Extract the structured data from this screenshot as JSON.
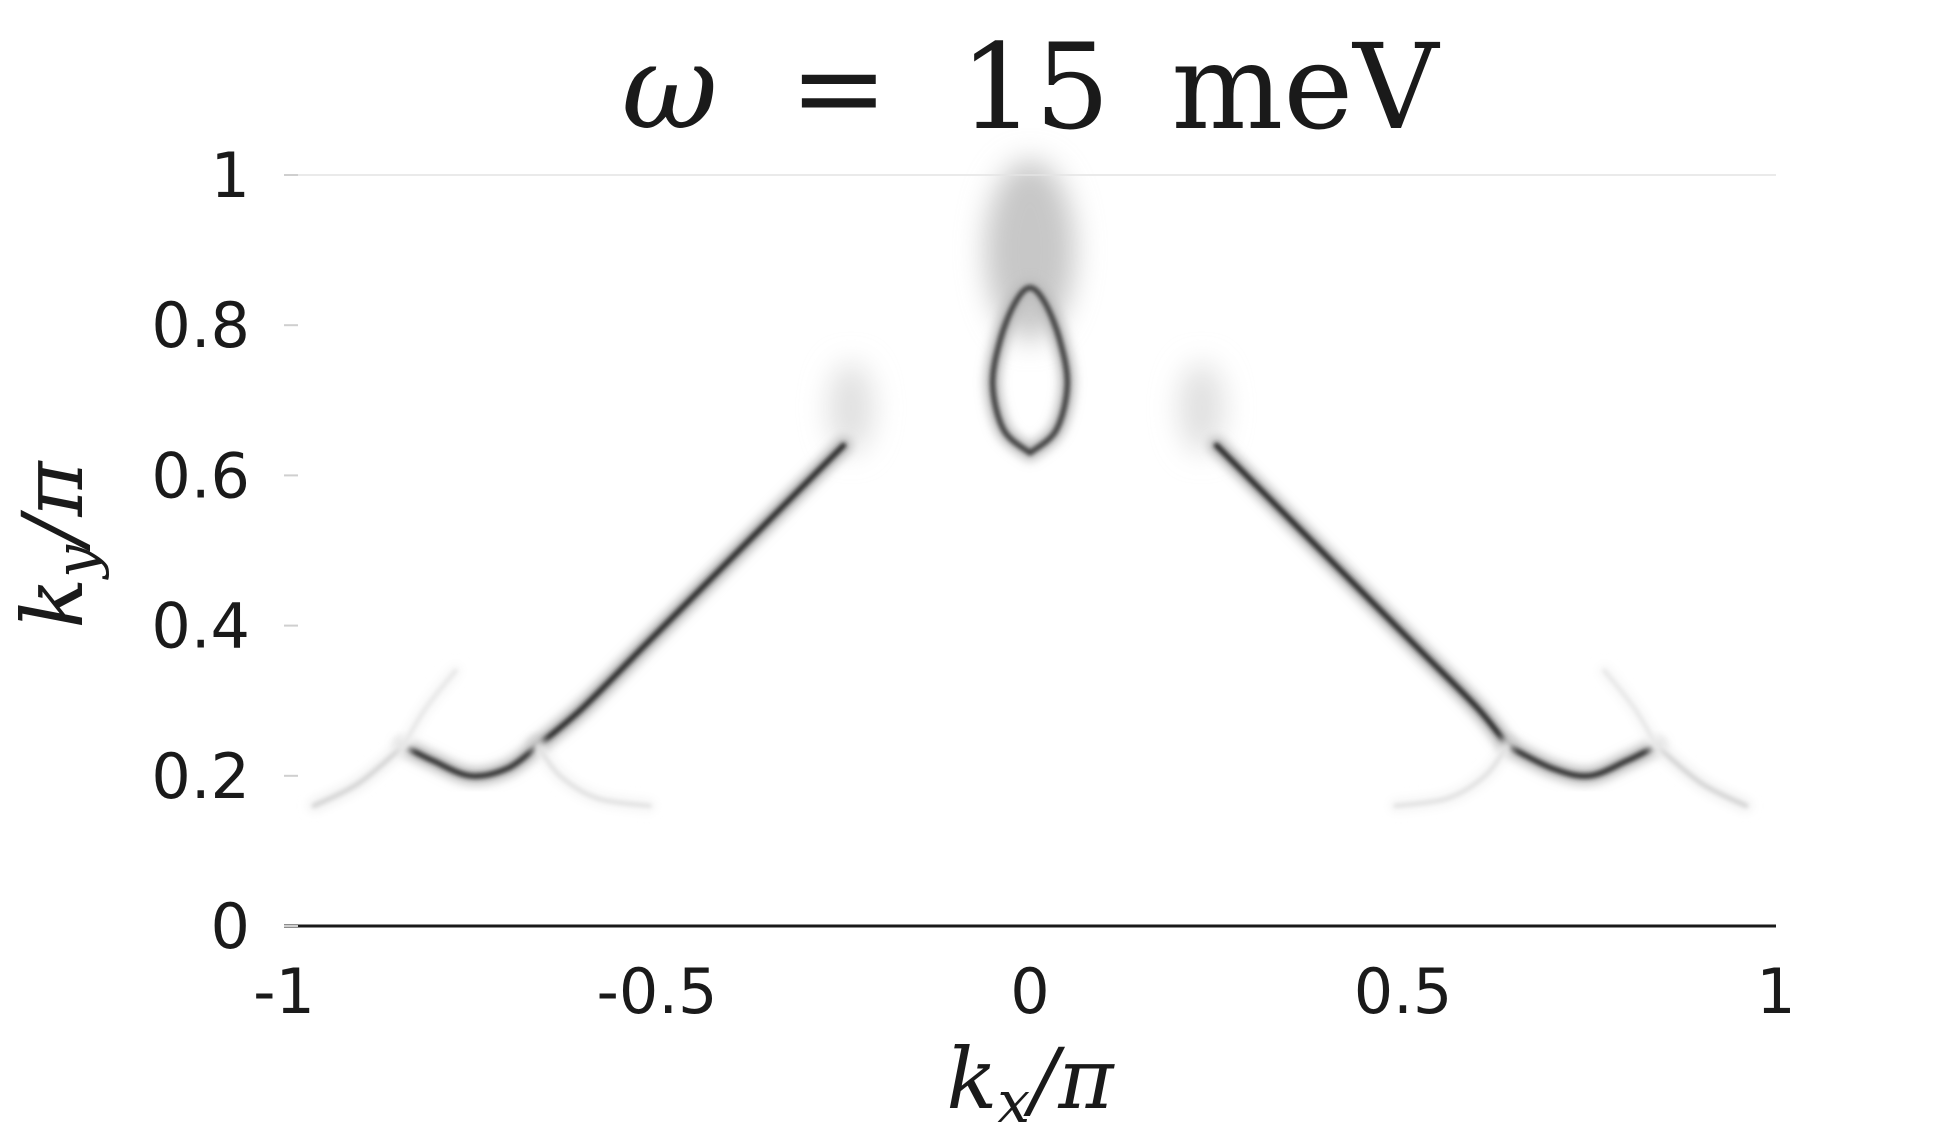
{
  "chart_data": {
    "type": "heatmap",
    "title": "ω = 15 meV",
    "title_parts": {
      "symbol": "ω",
      "eq": "=",
      "value": "15",
      "unit": "meV"
    },
    "xlabel": "k_x/π",
    "ylabel": "k_y/π",
    "xlabel_parts": {
      "base": "k",
      "sub": "x",
      "rest": "/π"
    },
    "ylabel_parts": {
      "base": "k",
      "sub": "y",
      "rest": "/π"
    },
    "xlim": [
      -1,
      1
    ],
    "ylim": [
      0,
      1
    ],
    "xticks": [
      {
        "value": -1,
        "label": "-1"
      },
      {
        "value": -0.5,
        "label": "-0.5"
      },
      {
        "value": 0,
        "label": "0"
      },
      {
        "value": 0.5,
        "label": "0.5"
      },
      {
        "value": 1,
        "label": "1"
      }
    ],
    "yticks": [
      {
        "value": 0,
        "label": "0"
      },
      {
        "value": 0.2,
        "label": "0.2"
      },
      {
        "value": 0.4,
        "label": "0.4"
      },
      {
        "value": 0.6,
        "label": "0.6"
      },
      {
        "value": 0.8,
        "label": "0.8"
      },
      {
        "value": 1,
        "label": "1"
      }
    ],
    "colormap": "grayscale (white = low, black = high intensity)",
    "grid": false,
    "features": [
      {
        "name": "left Fermi arc",
        "intensity": 0.85,
        "points": [
          [
            -0.25,
            0.64
          ],
          [
            -0.3,
            0.59
          ],
          [
            -0.36,
            0.53
          ],
          [
            -0.44,
            0.45
          ],
          [
            -0.52,
            0.37
          ],
          [
            -0.6,
            0.29
          ],
          [
            -0.66,
            0.24
          ]
        ]
      },
      {
        "name": "left pocket bottom",
        "intensity": 0.8,
        "points": [
          [
            -0.66,
            0.24
          ],
          [
            -0.7,
            0.21
          ],
          [
            -0.75,
            0.2
          ],
          [
            -0.8,
            0.22
          ],
          [
            -0.84,
            0.24
          ]
        ]
      },
      {
        "name": "left faint branch",
        "intensity": 0.18,
        "points": [
          [
            -0.84,
            0.24
          ],
          [
            -0.9,
            0.19
          ],
          [
            -0.96,
            0.16
          ]
        ]
      },
      {
        "name": "left faint upper branch",
        "intensity": 0.1,
        "points": [
          [
            -0.84,
            0.24
          ],
          [
            -0.81,
            0.29
          ],
          [
            -0.77,
            0.34
          ]
        ]
      },
      {
        "name": "left faint lower branch",
        "intensity": 0.12,
        "points": [
          [
            -0.66,
            0.24
          ],
          [
            -0.63,
            0.2
          ],
          [
            -0.58,
            0.17
          ],
          [
            -0.51,
            0.16
          ]
        ]
      },
      {
        "name": "right Fermi arc",
        "intensity": 0.85,
        "points": [
          [
            0.25,
            0.64
          ],
          [
            0.3,
            0.59
          ],
          [
            0.36,
            0.53
          ],
          [
            0.44,
            0.45
          ],
          [
            0.52,
            0.37
          ],
          [
            0.6,
            0.29
          ],
          [
            0.64,
            0.24
          ]
        ]
      },
      {
        "name": "right pocket bottom",
        "intensity": 0.8,
        "points": [
          [
            0.64,
            0.24
          ],
          [
            0.7,
            0.21
          ],
          [
            0.75,
            0.2
          ],
          [
            0.8,
            0.22
          ],
          [
            0.84,
            0.24
          ]
        ]
      },
      {
        "name": "right faint branch",
        "intensity": 0.18,
        "points": [
          [
            0.84,
            0.24
          ],
          [
            0.9,
            0.19
          ],
          [
            0.96,
            0.16
          ]
        ]
      },
      {
        "name": "right faint upper branch",
        "intensity": 0.1,
        "points": [
          [
            0.84,
            0.24
          ],
          [
            0.81,
            0.29
          ],
          [
            0.77,
            0.34
          ]
        ]
      },
      {
        "name": "right faint lower branch",
        "intensity": 0.12,
        "points": [
          [
            0.64,
            0.24
          ],
          [
            0.61,
            0.2
          ],
          [
            0.56,
            0.17
          ],
          [
            0.49,
            0.16
          ]
        ]
      },
      {
        "name": "central pocket",
        "intensity": 0.75,
        "points": [
          [
            0,
            0.63
          ],
          [
            -0.035,
            0.66
          ],
          [
            -0.05,
            0.72
          ],
          [
            -0.04,
            0.78
          ],
          [
            -0.02,
            0.83
          ],
          [
            0,
            0.85
          ],
          [
            0.02,
            0.83
          ],
          [
            0.04,
            0.78
          ],
          [
            0.05,
            0.72
          ],
          [
            0.035,
            0.66
          ],
          [
            0,
            0.63
          ]
        ]
      }
    ],
    "diffuse_spots": [
      {
        "name": "central top diffuse",
        "x": 0,
        "y": 0.9,
        "rx": 0.06,
        "ry": 0.12,
        "intensity": 0.22
      },
      {
        "name": "left diffuse spot",
        "x": -0.24,
        "y": 0.69,
        "rx": 0.03,
        "ry": 0.06,
        "intensity": 0.12
      },
      {
        "name": "right diffuse spot",
        "x": 0.23,
        "y": 0.69,
        "rx": 0.03,
        "ry": 0.06,
        "intensity": 0.12
      }
    ]
  }
}
